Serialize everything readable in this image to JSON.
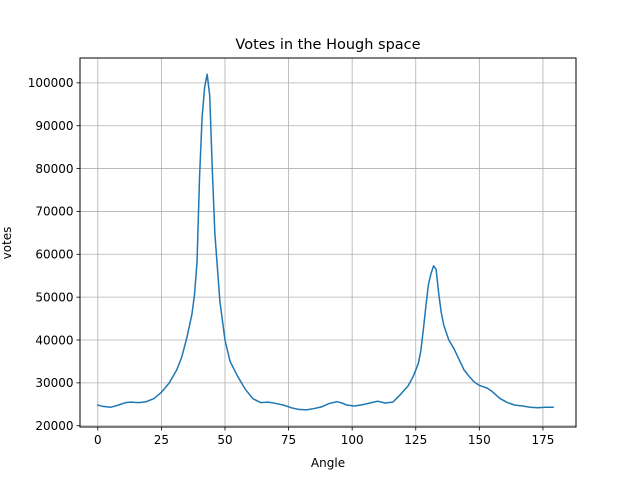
{
  "chart_data": {
    "type": "line",
    "title": "Votes in the Hough space",
    "xlabel": "Angle",
    "ylabel": "votes",
    "xlim": [
      -7,
      188
    ],
    "ylim": [
      19700,
      105800
    ],
    "grid": true,
    "x_ticks": [
      0,
      25,
      50,
      75,
      100,
      125,
      150,
      175
    ],
    "x_tick_labels": [
      "0",
      "25",
      "50",
      "75",
      "100",
      "125",
      "150",
      "175"
    ],
    "y_ticks": [
      20000,
      30000,
      40000,
      50000,
      60000,
      70000,
      80000,
      90000,
      100000
    ],
    "y_tick_labels": [
      "20000",
      "30000",
      "40000",
      "50000",
      "60000",
      "70000",
      "80000",
      "90000",
      "100000"
    ],
    "series": [
      {
        "color": "#1f77b4",
        "x": [
          0,
          2,
          5,
          8,
          11,
          13,
          16,
          19,
          22,
          25,
          28,
          31,
          33,
          35,
          37,
          38,
          39,
          40,
          41,
          42,
          43,
          44,
          45,
          46,
          48,
          50,
          52,
          55,
          58,
          61,
          64,
          67,
          70,
          73,
          76,
          79,
          82,
          85,
          88,
          91,
          94,
          96,
          98,
          101,
          104,
          107,
          110,
          113,
          116,
          119,
          122,
          124,
          126,
          127,
          128,
          129,
          130,
          131,
          132,
          133,
          134,
          135,
          136,
          138,
          140,
          142,
          144,
          146,
          148,
          150,
          153,
          155,
          158,
          161,
          164,
          167,
          170,
          173,
          176,
          179
        ],
        "y": [
          24800,
          24500,
          24300,
          24800,
          25400,
          25500,
          25400,
          25600,
          26300,
          27800,
          29900,
          33000,
          36000,
          40500,
          46000,
          50500,
          58000,
          78000,
          92000,
          99000,
          102000,
          97000,
          80000,
          65000,
          49000,
          40000,
          35000,
          31500,
          28500,
          26300,
          25400,
          25500,
          25200,
          24800,
          24200,
          23800,
          23700,
          24000,
          24400,
          25200,
          25600,
          25300,
          24800,
          24600,
          24900,
          25300,
          25700,
          25300,
          25500,
          27300,
          29300,
          31500,
          34500,
          37500,
          42500,
          48000,
          53000,
          55500,
          57300,
          56500,
          51000,
          46500,
          43500,
          40000,
          38000,
          35500,
          33000,
          31500,
          30200,
          29400,
          28800,
          28000,
          26400,
          25400,
          24800,
          24600,
          24300,
          24200,
          24300,
          24300
        ]
      }
    ]
  }
}
